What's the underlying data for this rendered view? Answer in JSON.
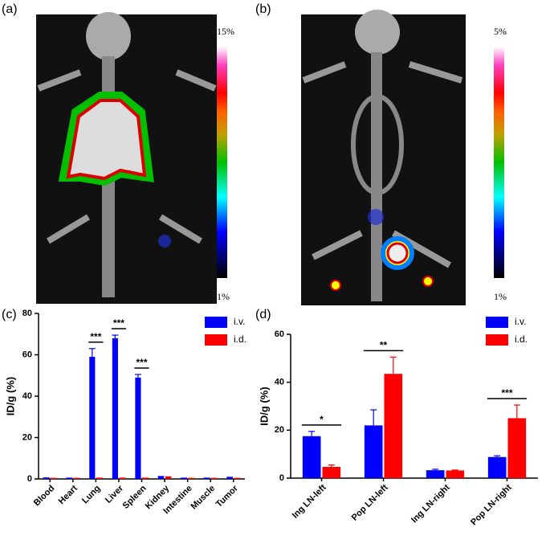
{
  "panels": {
    "a": {
      "label": "(a)",
      "scale_max": "15%",
      "scale_min": "1%"
    },
    "b": {
      "label": "(b)",
      "scale_max": "5%",
      "scale_min": "1%"
    },
    "c": {
      "label": "(c)"
    },
    "d": {
      "label": "(d)"
    }
  },
  "chart_data": [
    {
      "type": "bar",
      "y_label": "ID/g (%)",
      "categories": [
        "Blood",
        "Heart",
        "Lung",
        "Liver",
        "Spleen",
        "Kidney",
        "Intestine",
        "Muscle",
        "Tumor"
      ],
      "series": [
        {
          "name": "i.v.",
          "color": "#0000ff",
          "values": [
            0.4,
            0.3,
            59,
            68,
            49,
            1.0,
            0.3,
            0.3,
            0.6
          ],
          "errors": [
            0.1,
            0.1,
            4,
            1.5,
            1.5,
            0.2,
            0.1,
            0.1,
            0.2
          ]
        },
        {
          "name": "i.d.",
          "color": "#ff0000",
          "values": [
            0.2,
            0.2,
            0.3,
            0.3,
            0.3,
            0.8,
            0.2,
            0.2,
            0.2
          ],
          "errors": [
            0.1,
            0.1,
            0.1,
            0.1,
            0.1,
            0.2,
            0.1,
            0.1,
            0.1
          ]
        }
      ],
      "annotations": [
        {
          "category": "Lung",
          "text": "***"
        },
        {
          "category": "Liver",
          "text": "***"
        },
        {
          "category": "Spleen",
          "text": "***"
        }
      ],
      "ylim": [
        0,
        80
      ],
      "yticks": [
        0,
        20,
        40,
        60,
        80
      ],
      "legend": "top-right"
    },
    {
      "type": "bar",
      "y_label": "ID/g (%)",
      "categories": [
        "Ing LN-left",
        "Pop LN-left",
        "Ing LN-right",
        "Pop LN-right"
      ],
      "series": [
        {
          "name": "i.v.",
          "color": "#0000ff",
          "values": [
            17.5,
            22,
            3.3,
            8.8
          ],
          "errors": [
            2,
            6.5,
            0.4,
            0.5
          ]
        },
        {
          "name": "i.d.",
          "color": "#ff0000",
          "values": [
            4.7,
            43.5,
            3.2,
            25
          ],
          "errors": [
            0.8,
            7,
            0.2,
            5.5
          ]
        }
      ],
      "annotations": [
        {
          "category": "Ing LN-left",
          "text": "*"
        },
        {
          "category": "Pop LN-left",
          "text": "**"
        },
        {
          "category": "Pop LN-right",
          "text": "***"
        }
      ],
      "ylim": [
        0,
        60
      ],
      "yticks": [
        0,
        20,
        40,
        60
      ],
      "legend": "top-right"
    }
  ]
}
